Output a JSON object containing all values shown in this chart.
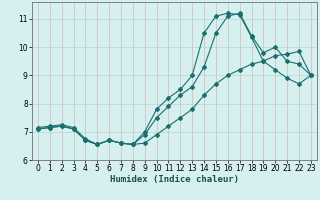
{
  "xlabel": "Humidex (Indice chaleur)",
  "background_color": "#d6efef",
  "grid_color": "#b8d4d4",
  "line_color": "#1a7070",
  "xlim": [
    -0.5,
    23.5
  ],
  "ylim": [
    6.0,
    11.6
  ],
  "xticks": [
    0,
    1,
    2,
    3,
    4,
    5,
    6,
    7,
    8,
    9,
    10,
    11,
    12,
    13,
    14,
    15,
    16,
    17,
    18,
    19,
    20,
    21,
    22,
    23
  ],
  "yticks": [
    6,
    7,
    8,
    9,
    10,
    11
  ],
  "series1_x": [
    0,
    1,
    2,
    3,
    4,
    5,
    6,
    7,
    8,
    9,
    10,
    11,
    12,
    13,
    14,
    15,
    16,
    17,
    18,
    19,
    20,
    21,
    22,
    23
  ],
  "series1_y": [
    7.15,
    7.2,
    7.25,
    7.15,
    6.75,
    6.55,
    6.7,
    6.6,
    6.55,
    6.6,
    6.9,
    7.2,
    7.5,
    7.8,
    8.3,
    8.7,
    9.0,
    9.2,
    9.4,
    9.5,
    9.7,
    9.75,
    9.85,
    9.0
  ],
  "series2_x": [
    0,
    1,
    2,
    3,
    4,
    5,
    6,
    7,
    8,
    9,
    10,
    11,
    12,
    13,
    14,
    15,
    16,
    17,
    18,
    19,
    20,
    21,
    22,
    23
  ],
  "series2_y": [
    7.1,
    7.15,
    7.2,
    7.1,
    6.7,
    6.55,
    6.7,
    6.6,
    6.55,
    6.9,
    7.5,
    7.9,
    8.3,
    8.6,
    9.3,
    10.5,
    11.1,
    11.2,
    10.4,
    9.8,
    10.0,
    9.5,
    9.4,
    9.0
  ],
  "series3_x": [
    0,
    1,
    2,
    3,
    4,
    5,
    6,
    7,
    8,
    9,
    10,
    11,
    12,
    13,
    14,
    15,
    16,
    17,
    18,
    19,
    20,
    21,
    22,
    23
  ],
  "series3_y": [
    7.1,
    7.15,
    7.2,
    7.1,
    6.7,
    6.55,
    6.7,
    6.6,
    6.55,
    7.0,
    7.8,
    8.2,
    8.5,
    9.0,
    10.5,
    11.1,
    11.2,
    11.15,
    10.35,
    9.5,
    9.2,
    8.9,
    8.7,
    9.0
  ],
  "markersize": 2.0,
  "linewidth": 0.8
}
